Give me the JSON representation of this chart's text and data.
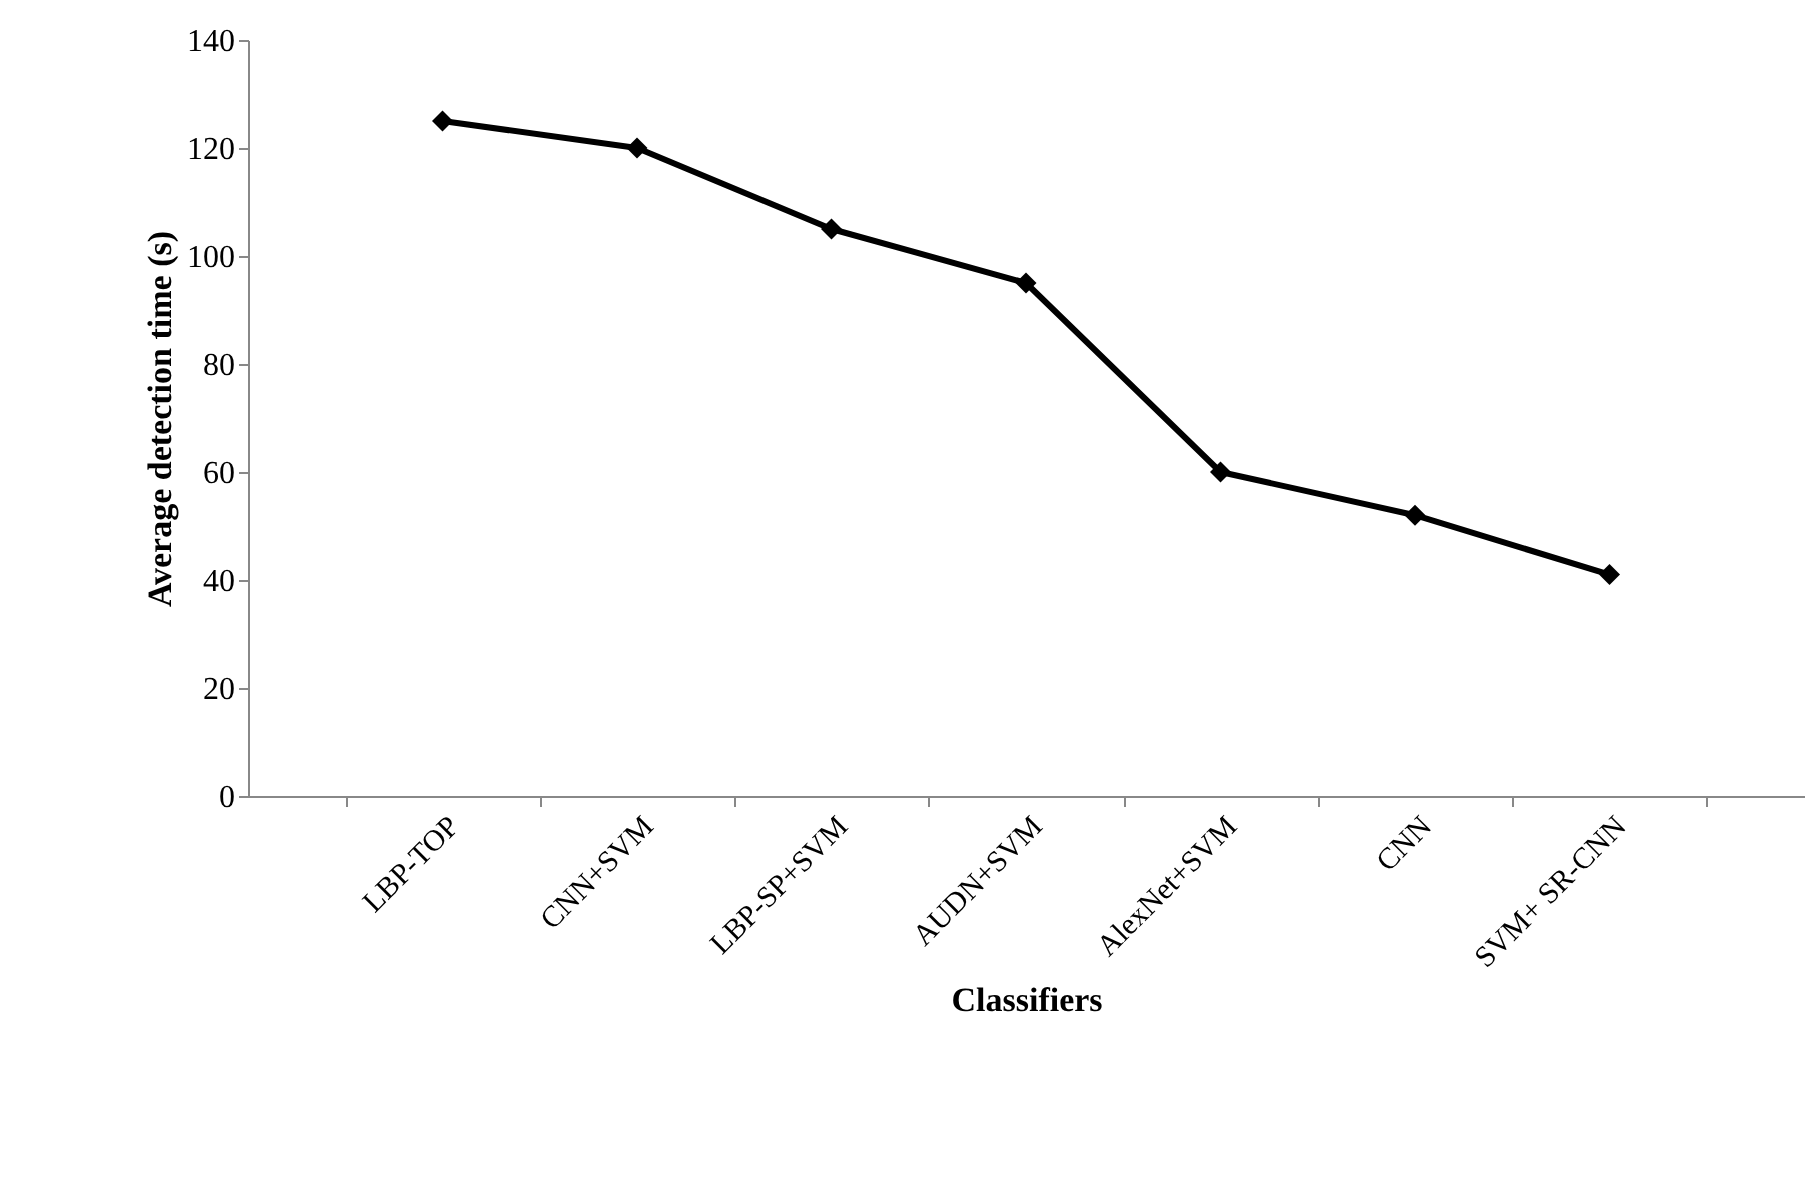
{
  "chart_data": {
    "type": "line",
    "xlabel": "Classifiers",
    "ylabel": "Average detection time (s)",
    "categories": [
      "LBP-TOP",
      "CNN+SVM",
      "LBP-SP+SVM",
      "AUDN+SVM",
      "AlexNet+SVM",
      "CNN",
      "SVM+ SR-CNN"
    ],
    "series": [
      {
        "color": "#000000",
        "values": [
          125,
          120,
          105,
          95,
          60,
          52,
          41
        ]
      }
    ],
    "ylim": [
      0,
      140
    ],
    "yticks": [
      0,
      20,
      40,
      60,
      80,
      100,
      120,
      140
    ],
    "grid": false,
    "legend": false,
    "marker": "diamond",
    "line_style": "solid"
  }
}
